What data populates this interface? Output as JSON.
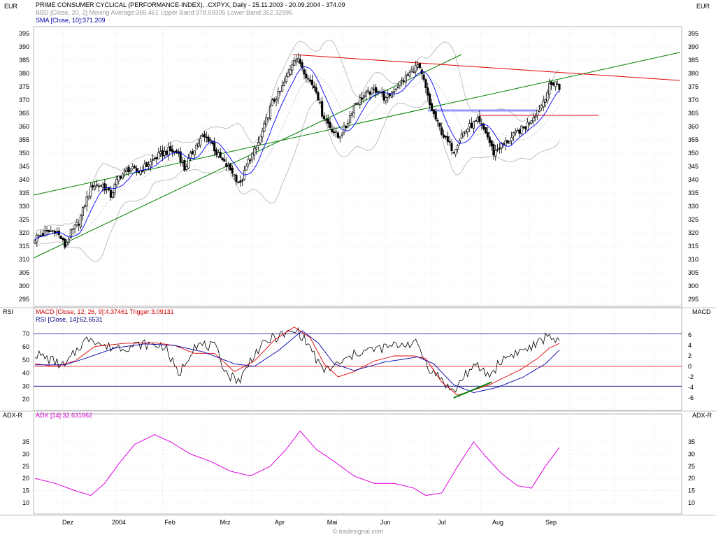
{
  "header": {
    "title": "PRIME CONSUMER CYCLICAL (PERFORMANCE-INDEX), .CXPYX, Daily - 25.11.2003 - 20.09.2004 - 374.09",
    "bbd_legend": "BBD [Close, 20, 2] Moving Average:365.461 Upper Band:378.59205 Lower Band:352.32995",
    "sma_legend": "SMA [Close, 10]:371.209",
    "left_currency": "EUR",
    "right_currency": "EUR"
  },
  "rsi_panel": {
    "left_label": "RSI",
    "right_label": "MACD",
    "macd_legend": "MACD [Close, 12, 26, 9]:4.37461 Trigger:3.09131",
    "rsi_legend": "RSI [Close, 14]:62.6531"
  },
  "adx_panel": {
    "left_label": "ADX-R",
    "right_label": "ADX-R",
    "adx_legend": "ADX [14]:32.631662"
  },
  "footer": {
    "watermark": "© tradesignal.com"
  },
  "colors": {
    "candle": "#000000",
    "sma": "#0000ff",
    "bands": "#b0b0b0",
    "trend_green": "#008000",
    "resistance_red": "#e00000",
    "support_blue": "#9999ff",
    "macd": "#e00000",
    "trigger": "#0000aa",
    "rsi": "#000080",
    "adx": "#e000e0",
    "grid": "#cccccc"
  },
  "chart_data": [
    {
      "type": "candlestick",
      "title": "PRIME CONSUMER CYCLICAL (PERFORMANCE-INDEX), .CXPYX, Daily - 25.11.2003 - 20.09.2004 - 374.09",
      "ylabel": "EUR",
      "ylim": [
        292,
        398
      ],
      "y_ticks": [
        295,
        300,
        305,
        310,
        315,
        320,
        325,
        330,
        335,
        340,
        345,
        350,
        355,
        360,
        365,
        370,
        375,
        380,
        385,
        390,
        395
      ],
      "x_ticks": [
        "Dez",
        "2004",
        "Feb",
        "Mrz",
        "Apr",
        "Mai",
        "Jun",
        "Jul",
        "Aug",
        "Sep"
      ],
      "close_anchors": [
        {
          "day": 0,
          "close": 318
        },
        {
          "day": 5,
          "close": 320
        },
        {
          "day": 10,
          "close": 321
        },
        {
          "day": 13,
          "close": 318
        },
        {
          "day": 15,
          "close": 315
        },
        {
          "day": 18,
          "close": 320
        },
        {
          "day": 22,
          "close": 324
        },
        {
          "day": 26,
          "close": 333
        },
        {
          "day": 29,
          "close": 338
        },
        {
          "day": 34,
          "close": 338
        },
        {
          "day": 38,
          "close": 334
        },
        {
          "day": 42,
          "close": 341
        },
        {
          "day": 47,
          "close": 344
        },
        {
          "day": 52,
          "close": 343
        },
        {
          "day": 57,
          "close": 346
        },
        {
          "day": 62,
          "close": 349
        },
        {
          "day": 67,
          "close": 351
        },
        {
          "day": 72,
          "close": 350
        },
        {
          "day": 75,
          "close": 344
        },
        {
          "day": 80,
          "close": 352
        },
        {
          "day": 84,
          "close": 356
        },
        {
          "day": 88,
          "close": 355
        },
        {
          "day": 91,
          "close": 350
        },
        {
          "day": 95,
          "close": 346
        },
        {
          "day": 99,
          "close": 343
        },
        {
          "day": 103,
          "close": 338
        },
        {
          "day": 107,
          "close": 347
        },
        {
          "day": 111,
          "close": 352
        },
        {
          "day": 115,
          "close": 360
        },
        {
          "day": 119,
          "close": 369
        },
        {
          "day": 123,
          "close": 373
        },
        {
          "day": 127,
          "close": 380
        },
        {
          "day": 130,
          "close": 386
        },
        {
          "day": 133,
          "close": 384
        },
        {
          "day": 137,
          "close": 378
        },
        {
          "day": 141,
          "close": 374
        },
        {
          "day": 144,
          "close": 365
        },
        {
          "day": 148,
          "close": 360
        },
        {
          "day": 152,
          "close": 356
        },
        {
          "day": 156,
          "close": 360
        },
        {
          "day": 160,
          "close": 368
        },
        {
          "day": 164,
          "close": 371
        },
        {
          "day": 168,
          "close": 373
        },
        {
          "day": 172,
          "close": 374
        },
        {
          "day": 176,
          "close": 370
        },
        {
          "day": 180,
          "close": 374
        },
        {
          "day": 184,
          "close": 377
        },
        {
          "day": 188,
          "close": 380
        },
        {
          "day": 192,
          "close": 383
        },
        {
          "day": 195,
          "close": 377
        },
        {
          "day": 198,
          "close": 368
        },
        {
          "day": 202,
          "close": 361
        },
        {
          "day": 206,
          "close": 355
        },
        {
          "day": 210,
          "close": 351
        },
        {
          "day": 214,
          "close": 357
        },
        {
          "day": 218,
          "close": 360
        },
        {
          "day": 222,
          "close": 362
        },
        {
          "day": 226,
          "close": 358
        },
        {
          "day": 230,
          "close": 350
        },
        {
          "day": 234,
          "close": 353
        },
        {
          "day": 238,
          "close": 355
        },
        {
          "day": 242,
          "close": 358
        },
        {
          "day": 246,
          "close": 360
        },
        {
          "day": 250,
          "close": 364
        },
        {
          "day": 254,
          "close": 368
        },
        {
          "day": 258,
          "close": 375
        },
        {
          "day": 261,
          "close": 377
        },
        {
          "day": 263,
          "close": 374.09
        }
      ],
      "trendlines": [
        {
          "name": "upper-channel",
          "points": [
            [
              "25.11.2003",
              334
            ],
            [
              "20.09.2004",
              389
            ]
          ]
        },
        {
          "name": "lower-channel",
          "points": [
            [
              "25.11.2003",
              310
            ],
            [
              "15.07.2004",
              359
            ]
          ]
        },
        {
          "name": "resistance",
          "points": [
            [
              "05.04.2004",
              387
            ],
            [
              "20.09.2004",
              378
            ]
          ]
        },
        {
          "name": "support",
          "points": [
            [
              "14.07.2004",
              366
            ],
            [
              "20.08.2004",
              366
            ]
          ]
        },
        {
          "name": "level",
          "points": [
            [
              "14.07.2004",
              364.5
            ],
            [
              "20.08.2004",
              364.5
            ]
          ]
        }
      ]
    },
    {
      "type": "line",
      "title": "RSI / MACD",
      "rsi_ticks": [
        20,
        30,
        40,
        50,
        60,
        70
      ],
      "macd_ticks": [
        -6,
        -4,
        -2,
        0,
        2,
        4,
        6
      ],
      "rsi_anchors": [
        {
          "day": 0,
          "v": 55
        },
        {
          "day": 8,
          "v": 50
        },
        {
          "day": 15,
          "v": 45
        },
        {
          "day": 22,
          "v": 60
        },
        {
          "day": 28,
          "v": 68
        },
        {
          "day": 35,
          "v": 60
        },
        {
          "day": 45,
          "v": 60
        },
        {
          "day": 55,
          "v": 62
        },
        {
          "day": 65,
          "v": 61
        },
        {
          "day": 72,
          "v": 38
        },
        {
          "day": 80,
          "v": 62
        },
        {
          "day": 90,
          "v": 60
        },
        {
          "day": 97,
          "v": 38
        },
        {
          "day": 103,
          "v": 35
        },
        {
          "day": 110,
          "v": 55
        },
        {
          "day": 118,
          "v": 66
        },
        {
          "day": 126,
          "v": 70
        },
        {
          "day": 132,
          "v": 72
        },
        {
          "day": 138,
          "v": 60
        },
        {
          "day": 144,
          "v": 42
        },
        {
          "day": 150,
          "v": 45
        },
        {
          "day": 156,
          "v": 50
        },
        {
          "day": 162,
          "v": 56
        },
        {
          "day": 170,
          "v": 58
        },
        {
          "day": 178,
          "v": 60
        },
        {
          "day": 186,
          "v": 63
        },
        {
          "day": 192,
          "v": 62
        },
        {
          "day": 197,
          "v": 45
        },
        {
          "day": 204,
          "v": 35
        },
        {
          "day": 210,
          "v": 25
        },
        {
          "day": 216,
          "v": 40
        },
        {
          "day": 222,
          "v": 45
        },
        {
          "day": 228,
          "v": 38
        },
        {
          "day": 234,
          "v": 50
        },
        {
          "day": 240,
          "v": 55
        },
        {
          "day": 246,
          "v": 58
        },
        {
          "day": 252,
          "v": 62
        },
        {
          "day": 258,
          "v": 70
        },
        {
          "day": 263,
          "v": 62.6531
        }
      ],
      "macd_anchors": [
        {
          "day": 0,
          "v": 0.5
        },
        {
          "day": 10,
          "v": 0.0
        },
        {
          "day": 20,
          "v": 1.0
        },
        {
          "day": 30,
          "v": 3.8
        },
        {
          "day": 45,
          "v": 4.4
        },
        {
          "day": 60,
          "v": 4.5
        },
        {
          "day": 70,
          "v": 4.0
        },
        {
          "day": 80,
          "v": 2.5
        },
        {
          "day": 90,
          "v": 2.5
        },
        {
          "day": 100,
          "v": -1.0
        },
        {
          "day": 110,
          "v": 1.0
        },
        {
          "day": 120,
          "v": 5.0
        },
        {
          "day": 130,
          "v": 7.5
        },
        {
          "day": 138,
          "v": 5.5
        },
        {
          "day": 145,
          "v": 0.5
        },
        {
          "day": 152,
          "v": -2.0
        },
        {
          "day": 160,
          "v": -1.0
        },
        {
          "day": 170,
          "v": 1.0
        },
        {
          "day": 180,
          "v": 2.0
        },
        {
          "day": 190,
          "v": 2.0
        },
        {
          "day": 196,
          "v": 1.5
        },
        {
          "day": 204,
          "v": -3.0
        },
        {
          "day": 212,
          "v": -5.5
        },
        {
          "day": 220,
          "v": -4.5
        },
        {
          "day": 228,
          "v": -3.5
        },
        {
          "day": 236,
          "v": -2.0
        },
        {
          "day": 244,
          "v": -0.5
        },
        {
          "day": 252,
          "v": 1.5
        },
        {
          "day": 258,
          "v": 3.5
        },
        {
          "day": 263,
          "v": 4.37461
        }
      ],
      "trigger_anchors": [
        {
          "day": 0,
          "v": 0.3
        },
        {
          "day": 15,
          "v": 0.3
        },
        {
          "day": 25,
          "v": 1.5
        },
        {
          "day": 40,
          "v": 3.5
        },
        {
          "day": 55,
          "v": 4.3
        },
        {
          "day": 70,
          "v": 4.0
        },
        {
          "day": 85,
          "v": 2.7
        },
        {
          "day": 100,
          "v": 0.5
        },
        {
          "day": 110,
          "v": 0.0
        },
        {
          "day": 122,
          "v": 3.0
        },
        {
          "day": 134,
          "v": 6.8
        },
        {
          "day": 142,
          "v": 4.5
        },
        {
          "day": 150,
          "v": 0.5
        },
        {
          "day": 160,
          "v": -0.8
        },
        {
          "day": 175,
          "v": 0.8
        },
        {
          "day": 192,
          "v": 1.8
        },
        {
          "day": 200,
          "v": 0.5
        },
        {
          "day": 210,
          "v": -3.5
        },
        {
          "day": 220,
          "v": -5.0
        },
        {
          "day": 232,
          "v": -4.0
        },
        {
          "day": 245,
          "v": -2.0
        },
        {
          "day": 256,
          "v": 0.5
        },
        {
          "day": 263,
          "v": 3.09131
        }
      ],
      "rsi_levels": [
        70,
        30
      ],
      "macd_zero": 0,
      "divergence_line": {
        "from": {
          "day": 210,
          "macd": -6.0
        },
        "to": {
          "day": 229,
          "macd": -3.0
        }
      }
    },
    {
      "type": "line",
      "title": "ADX [14]",
      "y_ticks": [
        10,
        15,
        20,
        25,
        30,
        35
      ],
      "adx_anchors": [
        {
          "day": 0,
          "v": 20
        },
        {
          "day": 10,
          "v": 18
        },
        {
          "day": 20,
          "v": 15
        },
        {
          "day": 28,
          "v": 13
        },
        {
          "day": 35,
          "v": 18
        },
        {
          "day": 42,
          "v": 26
        },
        {
          "day": 50,
          "v": 34
        },
        {
          "day": 60,
          "v": 38
        },
        {
          "day": 68,
          "v": 35
        },
        {
          "day": 78,
          "v": 30
        },
        {
          "day": 88,
          "v": 27
        },
        {
          "day": 98,
          "v": 23
        },
        {
          "day": 108,
          "v": 21
        },
        {
          "day": 118,
          "v": 25
        },
        {
          "day": 126,
          "v": 32
        },
        {
          "day": 133,
          "v": 39.5
        },
        {
          "day": 141,
          "v": 32
        },
        {
          "day": 150,
          "v": 27
        },
        {
          "day": 160,
          "v": 21
        },
        {
          "day": 170,
          "v": 18
        },
        {
          "day": 180,
          "v": 18
        },
        {
          "day": 190,
          "v": 16
        },
        {
          "day": 196,
          "v": 13
        },
        {
          "day": 204,
          "v": 14
        },
        {
          "day": 212,
          "v": 25
        },
        {
          "day": 220,
          "v": 35
        },
        {
          "day": 226,
          "v": 29
        },
        {
          "day": 234,
          "v": 22
        },
        {
          "day": 242,
          "v": 17
        },
        {
          "day": 249,
          "v": 16
        },
        {
          "day": 256,
          "v": 25
        },
        {
          "day": 263,
          "v": 32.631662
        }
      ]
    }
  ]
}
